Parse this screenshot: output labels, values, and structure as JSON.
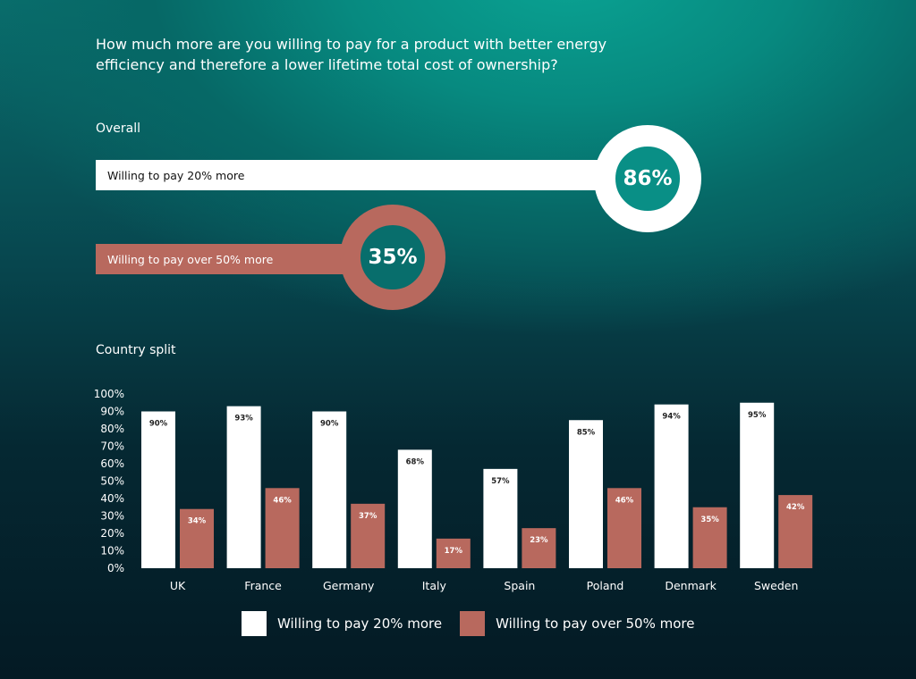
{
  "question": "How much more are you willing to pay for a product with better energy efficiency and therefore a lower lifetime total cost of ownership?",
  "overall": {
    "label": "Overall",
    "items": [
      {
        "label": "Willing to pay 20% more",
        "value": "86%"
      },
      {
        "label": "Willing to pay over 50% more",
        "value": "35%"
      }
    ]
  },
  "country_split_label": "Country split",
  "colors": {
    "series_20": "#ffffff",
    "series_50": "#b8695e"
  },
  "chart_data": {
    "type": "bar",
    "categories": [
      "UK",
      "France",
      "Germany",
      "Italy",
      "Spain",
      "Poland",
      "Denmark",
      "Sweden"
    ],
    "series": [
      {
        "name": "Willing to pay 20% more",
        "values": [
          90,
          93,
          90,
          68,
          57,
          85,
          94,
          95
        ]
      },
      {
        "name": "Willing to pay over 50% more",
        "values": [
          34,
          46,
          37,
          17,
          23,
          46,
          35,
          42
        ]
      }
    ],
    "value_labels": [
      [
        "90%",
        "93%",
        "90%",
        "68%",
        "57%",
        "85%",
        "94%",
        "95%"
      ],
      [
        "34%",
        "46%",
        "37%",
        "17%",
        "23%",
        "46%",
        "35%",
        "42%"
      ]
    ],
    "yticks": [
      "0%",
      "10%",
      "20%",
      "30%",
      "40%",
      "50%",
      "60%",
      "70%",
      "80%",
      "90%",
      "100%"
    ],
    "ylim": [
      0,
      100
    ],
    "grid": false,
    "legend": "bottom"
  }
}
